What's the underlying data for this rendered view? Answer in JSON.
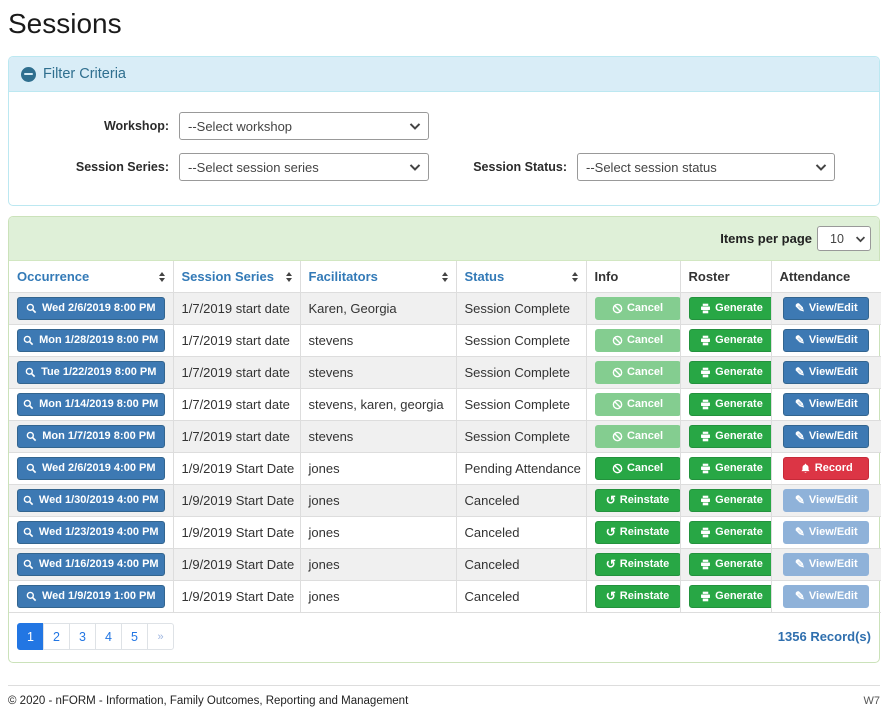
{
  "page": {
    "title": "Sessions"
  },
  "filter": {
    "title": "Filter Criteria",
    "workshop_label": "Workshop:",
    "workshop_value": "--Select workshop",
    "session_series_label": "Session Series:",
    "session_series_value": "--Select session series",
    "session_status_label": "Session Status:",
    "session_status_value": "--Select session status"
  },
  "table": {
    "items_per_page_label": "Items per page",
    "items_per_page_value": "10",
    "columns": [
      {
        "label": "Occurrence",
        "sortable": true
      },
      {
        "label": "Session Series",
        "sortable": true
      },
      {
        "label": "Facilitators",
        "sortable": true
      },
      {
        "label": "Status",
        "sortable": true
      },
      {
        "label": "Info",
        "sortable": false
      },
      {
        "label": "Roster",
        "sortable": false
      },
      {
        "label": "Attendance",
        "sortable": false
      }
    ],
    "action_labels": {
      "cancel": "Cancel",
      "reinstate": "Reinstate",
      "generate": "Generate",
      "view_edit": "View/Edit",
      "record": "Record"
    },
    "rows": [
      {
        "occurrence": "Wed 2/6/2019 8:00 PM",
        "session_series": "1/7/2019 start date",
        "facilitators": "Karen, Georgia",
        "status": "Session Complete",
        "info_action": "cancel",
        "info_enabled": false,
        "roster_action": "generate",
        "roster_enabled": true,
        "attendance_action": "view_edit",
        "attendance_enabled": true
      },
      {
        "occurrence": "Mon 1/28/2019 8:00 PM",
        "session_series": "1/7/2019 start date",
        "facilitators": "stevens",
        "status": "Session Complete",
        "info_action": "cancel",
        "info_enabled": false,
        "roster_action": "generate",
        "roster_enabled": true,
        "attendance_action": "view_edit",
        "attendance_enabled": true
      },
      {
        "occurrence": "Tue 1/22/2019 8:00 PM",
        "session_series": "1/7/2019 start date",
        "facilitators": "stevens",
        "status": "Session Complete",
        "info_action": "cancel",
        "info_enabled": false,
        "roster_action": "generate",
        "roster_enabled": true,
        "attendance_action": "view_edit",
        "attendance_enabled": true
      },
      {
        "occurrence": "Mon 1/14/2019 8:00 PM",
        "session_series": "1/7/2019 start date",
        "facilitators": "stevens, karen, georgia",
        "status": "Session Complete",
        "info_action": "cancel",
        "info_enabled": false,
        "roster_action": "generate",
        "roster_enabled": true,
        "attendance_action": "view_edit",
        "attendance_enabled": true
      },
      {
        "occurrence": "Mon 1/7/2019 8:00 PM",
        "session_series": "1/7/2019 start date",
        "facilitators": "stevens",
        "status": "Session Complete",
        "info_action": "cancel",
        "info_enabled": false,
        "roster_action": "generate",
        "roster_enabled": true,
        "attendance_action": "view_edit",
        "attendance_enabled": true
      },
      {
        "occurrence": "Wed 2/6/2019 4:00 PM",
        "session_series": "1/9/2019 Start Date",
        "facilitators": "jones",
        "status": "Pending Attendance",
        "info_action": "cancel",
        "info_enabled": true,
        "roster_action": "generate",
        "roster_enabled": true,
        "attendance_action": "record",
        "attendance_enabled": true
      },
      {
        "occurrence": "Wed 1/30/2019 4:00 PM",
        "session_series": "1/9/2019 Start Date",
        "facilitators": "jones",
        "status": "Canceled",
        "info_action": "reinstate",
        "info_enabled": true,
        "roster_action": "generate",
        "roster_enabled": true,
        "attendance_action": "view_edit",
        "attendance_enabled": false
      },
      {
        "occurrence": "Wed 1/23/2019 4:00 PM",
        "session_series": "1/9/2019 Start Date",
        "facilitators": "jones",
        "status": "Canceled",
        "info_action": "reinstate",
        "info_enabled": true,
        "roster_action": "generate",
        "roster_enabled": true,
        "attendance_action": "view_edit",
        "attendance_enabled": false
      },
      {
        "occurrence": "Wed 1/16/2019 4:00 PM",
        "session_series": "1/9/2019 Start Date",
        "facilitators": "jones",
        "status": "Canceled",
        "info_action": "reinstate",
        "info_enabled": true,
        "roster_action": "generate",
        "roster_enabled": true,
        "attendance_action": "view_edit",
        "attendance_enabled": false
      },
      {
        "occurrence": "Wed 1/9/2019 1:00 PM",
        "session_series": "1/9/2019 Start Date",
        "facilitators": "jones",
        "status": "Canceled",
        "info_action": "reinstate",
        "info_enabled": true,
        "roster_action": "generate",
        "roster_enabled": true,
        "attendance_action": "view_edit",
        "attendance_enabled": false
      }
    ],
    "pagination": {
      "pages": [
        "1",
        "2",
        "3",
        "4",
        "5",
        "»"
      ],
      "active": "1"
    },
    "record_count": "1356 Record(s)"
  },
  "icons": {
    "collapse": "minus-circle",
    "dropdown": "chevron-down",
    "sort": "up-down-triangles",
    "occurrence": "magnifier",
    "cancel": "slash-circle",
    "reinstate": "undo-arrow",
    "generate": "printer",
    "view_edit": "pencil",
    "record": "bell"
  },
  "colors": {
    "accent_blue": "#3d79b3",
    "blue_disabled": "#8fb2d9",
    "green": "#28a745",
    "green_disabled": "#84cd90",
    "red": "#dc3545",
    "filter_header_bg": "#d9edf7",
    "table_header_bg": "#dff0d8",
    "sortable_header_text": "#337ab7",
    "pagination_active": "#2276e3"
  },
  "footer": {
    "copyright": "© 2020 - nFORM - Information, Family Outcomes, Reporting and Management",
    "version": "W7"
  }
}
